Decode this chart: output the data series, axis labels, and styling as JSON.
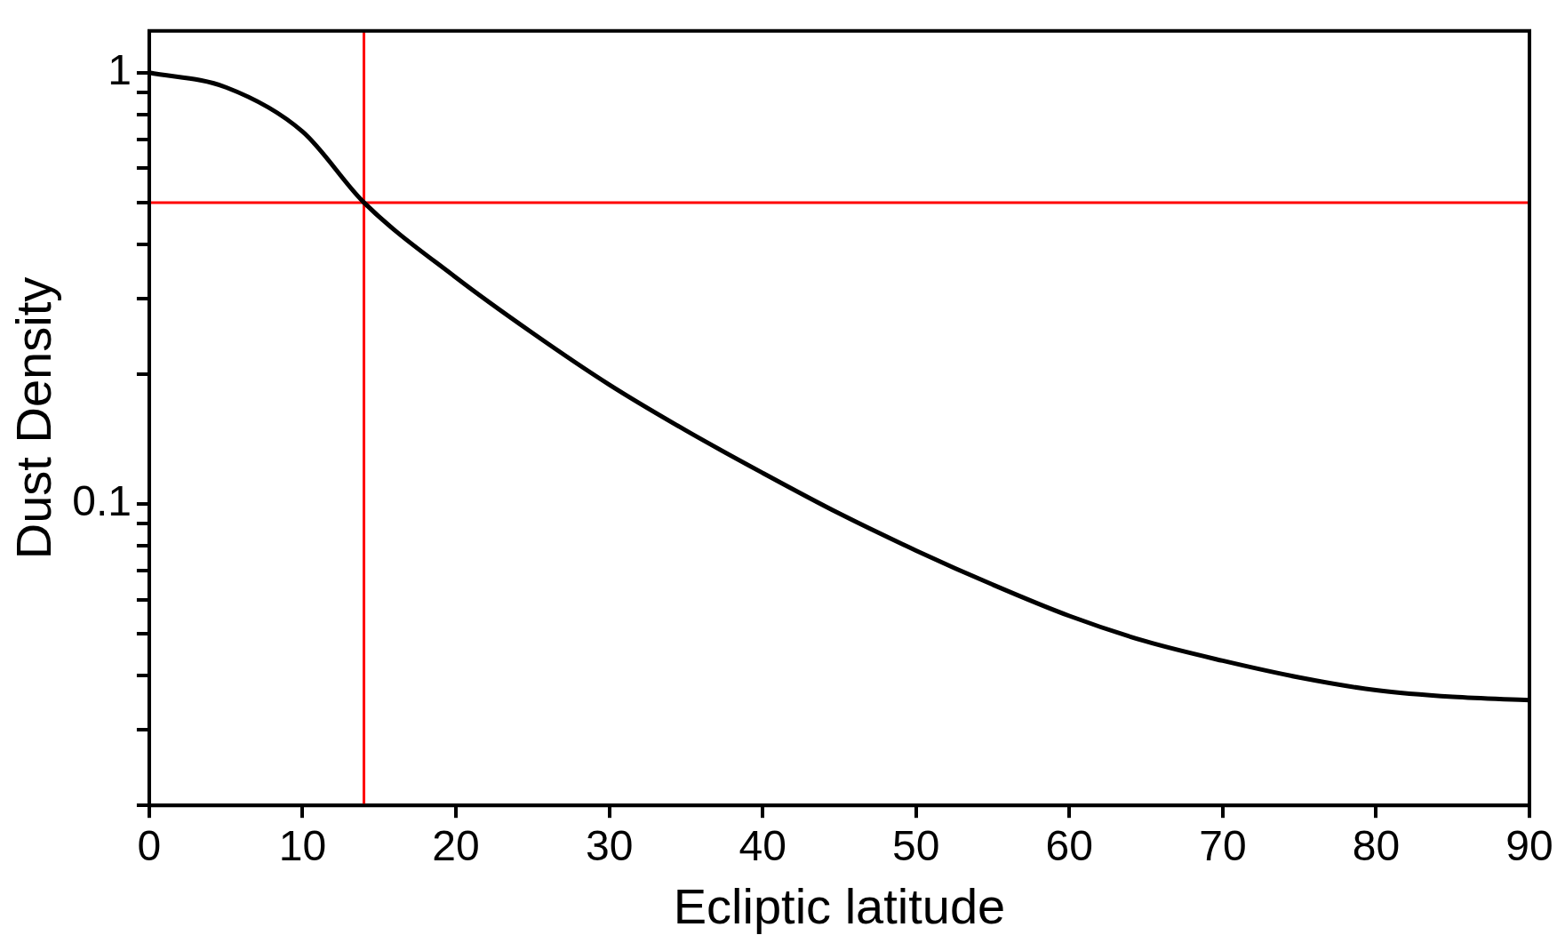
{
  "chart_data": {
    "type": "line",
    "xlabel": "Ecliptic latitude",
    "ylabel": "Dust Density",
    "x": [
      0,
      5,
      10,
      14,
      20,
      25,
      30,
      35,
      40,
      45,
      50,
      55,
      60,
      65,
      70,
      75,
      80,
      85,
      90
    ],
    "series": [
      {
        "color": "#000000",
        "values": [
          1,
          0.925,
          0.73,
          0.5,
          0.335,
          0.249,
          0.189,
          0.148,
          0.118,
          0.095,
          0.078,
          0.065,
          0.055,
          0.048,
          0.0433,
          0.0396,
          0.037,
          0.0357,
          0.0351
        ]
      }
    ],
    "log": "y",
    "xlim": [
      0,
      90
    ],
    "xticks": [
      0,
      10,
      20,
      30,
      40,
      50,
      60,
      70,
      80,
      90
    ],
    "ylim": [
      0.02,
      1.25
    ],
    "yticks": [
      {
        "value": 0.02,
        "label": null
      },
      {
        "value": 0.03,
        "label": null
      },
      {
        "value": 0.04,
        "label": null
      },
      {
        "value": 0.05,
        "label": null
      },
      {
        "value": 0.06,
        "label": null
      },
      {
        "value": 0.07,
        "label": null
      },
      {
        "value": 0.08,
        "label": null
      },
      {
        "value": 0.09,
        "label": null
      },
      0.1,
      {
        "value": 0.2,
        "label": null
      },
      {
        "value": 0.3,
        "label": null
      },
      {
        "value": 0.4,
        "label": null
      },
      {
        "value": 0.5,
        "label": null
      },
      {
        "value": 0.6,
        "label": null
      },
      {
        "value": 0.7,
        "label": null
      },
      {
        "value": 0.8,
        "label": null
      },
      {
        "value": 0.9,
        "label": null
      },
      1
    ],
    "ref_lines": [
      {
        "axis": "y",
        "value": 0.5,
        "color": "#ff0000"
      },
      {
        "axis": "x",
        "value": 14,
        "color": "#ff0000"
      }
    ],
    "grid": false,
    "legend": false,
    "marker": "none",
    "line_style": "solid"
  }
}
